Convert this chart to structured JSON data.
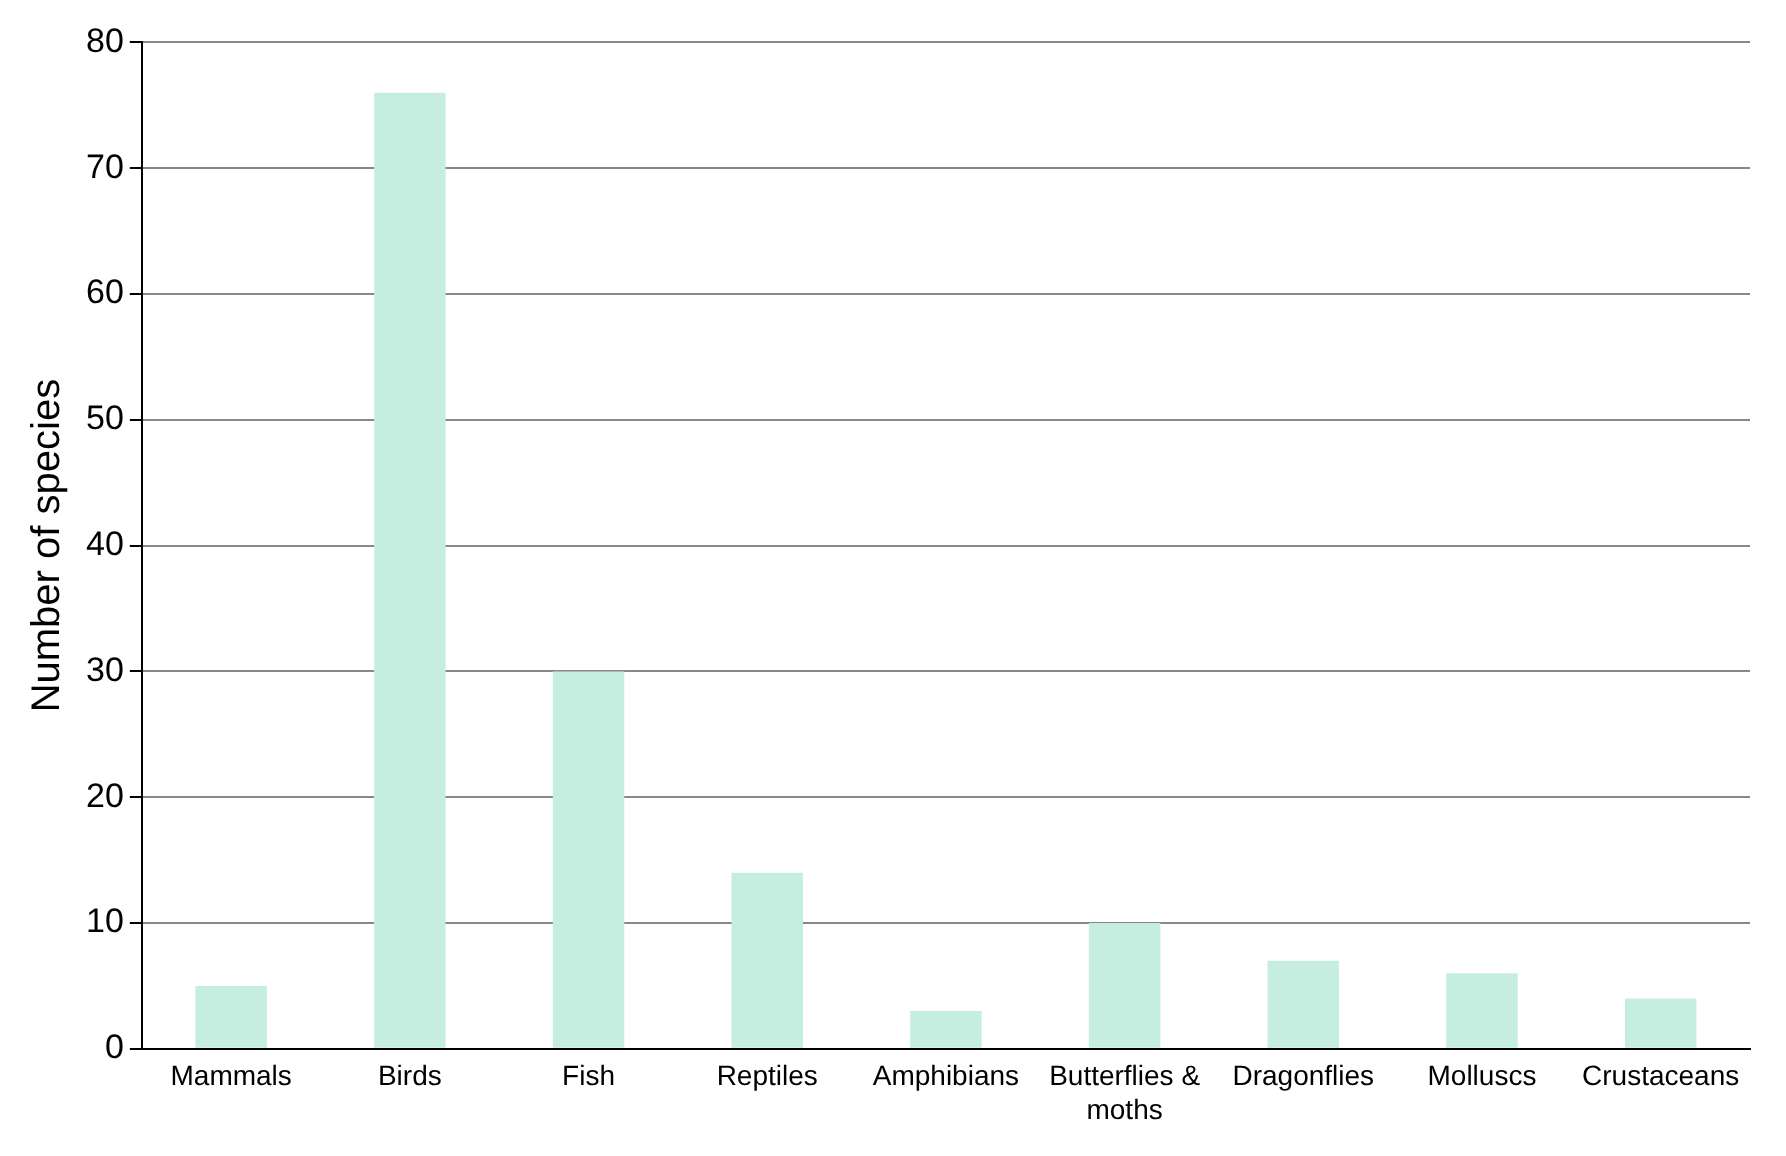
{
  "chart_data": {
    "type": "bar",
    "ylabel": "Number of species",
    "categories": [
      "Mammals",
      "Birds",
      "Fish",
      "Reptiles",
      "Amphibians",
      "Butterflies & moths",
      "Dragonflies",
      "Molluscs",
      "Crustaceans"
    ],
    "values": [
      5,
      76,
      30,
      14,
      3,
      10,
      7,
      6,
      4
    ],
    "color": "#c5ede0",
    "ylim": [
      0,
      80
    ],
    "yticks": [
      0,
      10,
      20,
      30,
      40,
      50,
      60,
      70,
      80
    ],
    "grid": "y",
    "legend": false
  }
}
